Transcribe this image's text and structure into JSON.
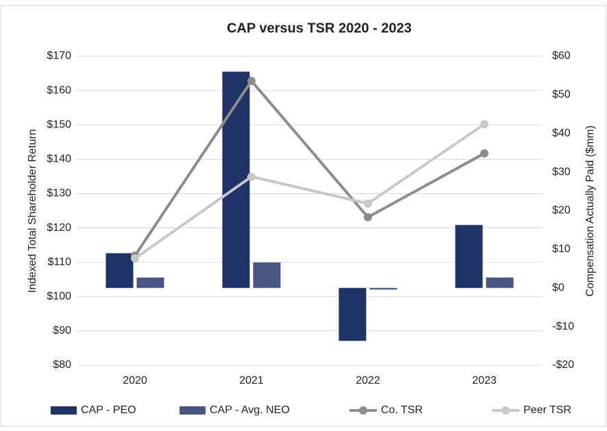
{
  "chart_data": {
    "type": "bar_line",
    "title": "CAP versus TSR 2020 - 2023",
    "ylabel": "Indexed Total Shareholder Return",
    "y2label": "Compensation Actually Paid ($mm)",
    "categories": [
      "2020",
      "2021",
      "2022",
      "2023"
    ],
    "series": [
      {
        "name": "CAP - PEO",
        "type": "bar",
        "axis": "y2",
        "color": "#1f3366",
        "values": [
          9,
          56,
          -13.7,
          16.3
        ]
      },
      {
        "name": "CAP - Avg. NEO",
        "type": "bar",
        "axis": "y2",
        "color": "#4a5584",
        "values": [
          2.7,
          6.6,
          -0.4,
          2.7
        ]
      },
      {
        "name": "Co. TSR",
        "type": "line",
        "color": "#8c8c8c",
        "values": [
          111.9,
          162.8,
          123.1,
          141.7
        ]
      },
      {
        "name": "Peer TSR",
        "type": "line",
        "color": "#c8c8c8",
        "values": [
          111.1,
          134.9,
          127.1,
          150.2
        ]
      }
    ],
    "ylim": [
      80,
      170
    ],
    "yticks": [
      {
        "value": 80,
        "label": "$80"
      },
      {
        "value": 90,
        "label": "$90"
      },
      {
        "value": 100,
        "label": "$100"
      },
      {
        "value": 110,
        "label": "$110"
      },
      {
        "value": 120,
        "label": "$120"
      },
      {
        "value": 130,
        "label": "$130"
      },
      {
        "value": 140,
        "label": "$140"
      },
      {
        "value": 150,
        "label": "$150"
      },
      {
        "value": 160,
        "label": "$160"
      },
      {
        "value": 170,
        "label": "$170"
      }
    ],
    "y2lim": [
      -20,
      60
    ],
    "y2ticks": [
      {
        "value": -20,
        "label": "-$20"
      },
      {
        "value": -10,
        "label": "-$10"
      },
      {
        "value": 0,
        "label": "$0"
      },
      {
        "value": 10,
        "label": "$10"
      },
      {
        "value": 20,
        "label": "$20"
      },
      {
        "value": 30,
        "label": "$30"
      },
      {
        "value": 40,
        "label": "$40"
      },
      {
        "value": 50,
        "label": "$50"
      },
      {
        "value": 60,
        "label": "$60"
      }
    ],
    "grid": true,
    "legend": "bottom"
  }
}
